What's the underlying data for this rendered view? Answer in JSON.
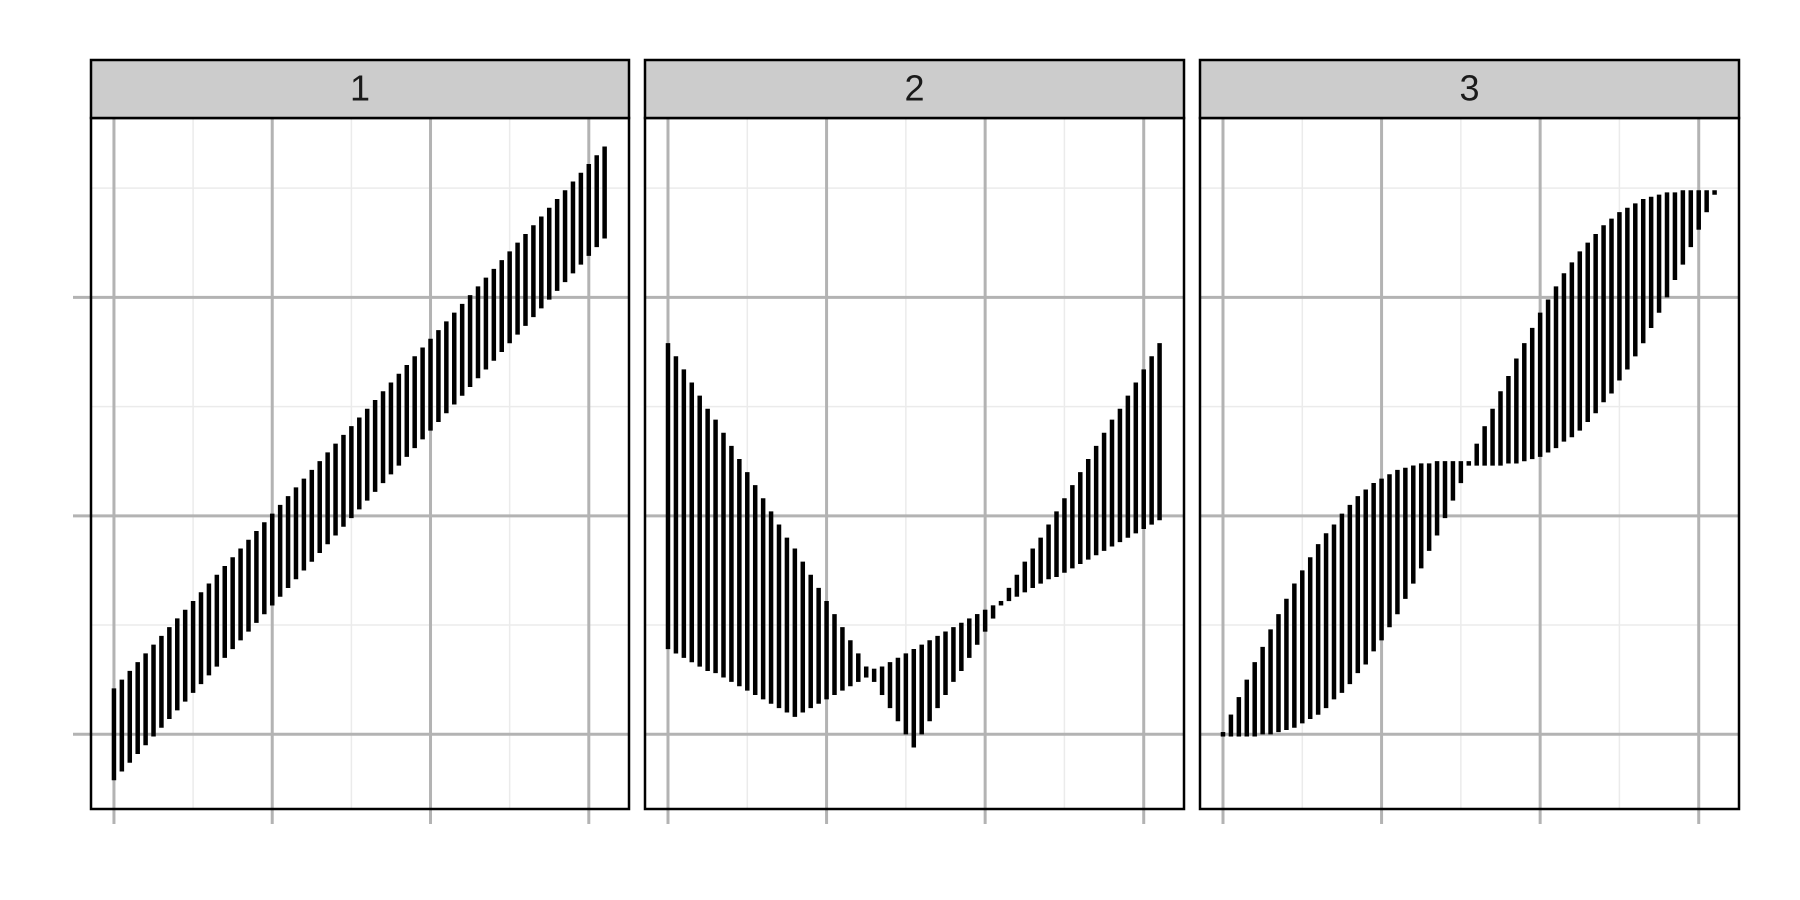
{
  "chart_data": {
    "type": "linerange",
    "color": "#000000",
    "grid": true,
    "x": [
      0,
      0.05,
      0.1,
      0.15,
      0.2,
      0.25,
      0.3,
      0.35,
      0.4,
      0.45,
      0.5,
      0.55,
      0.6,
      0.65,
      0.7,
      0.75,
      0.8,
      0.85,
      0.9,
      0.95,
      1,
      1.05,
      1.1,
      1.15,
      1.2,
      1.25,
      1.3,
      1.35,
      1.4,
      1.45,
      1.5,
      1.55,
      1.6,
      1.65,
      1.7,
      1.75,
      1.8,
      1.85,
      1.9,
      1.95,
      2,
      2.05,
      2.1,
      2.15,
      2.2,
      2.25,
      2.3,
      2.35,
      2.4,
      2.45,
      2.5,
      2.55,
      2.6,
      2.65,
      2.7,
      2.75,
      2.8,
      2.85,
      2.9,
      2.95,
      3,
      3.05,
      3.1
    ],
    "xlim": [
      -0.145,
      3.254
    ],
    "ylim": [
      -0.342,
      2.821
    ],
    "xticks": [
      0,
      1,
      2,
      3
    ],
    "xminor": [
      0.5,
      1.5,
      2.5
    ],
    "yticks": [
      0,
      1,
      2
    ],
    "yminor": [
      0.5,
      1.5,
      2.5
    ],
    "facets": [
      {
        "label": "1",
        "ymin": [
          -0.2,
          -0.16,
          -0.12,
          -0.08,
          -0.04,
          0,
          0.04,
          0.08,
          0.12,
          0.16,
          0.2,
          0.24,
          0.28,
          0.32,
          0.36,
          0.4,
          0.44,
          0.48,
          0.52,
          0.56,
          0.6,
          0.64,
          0.68,
          0.72,
          0.76,
          0.8,
          0.84,
          0.88,
          0.92,
          0.96,
          1,
          1.04,
          1.08,
          1.12,
          1.16,
          1.2,
          1.24,
          1.28,
          1.32,
          1.36,
          1.4,
          1.44,
          1.48,
          1.52,
          1.56,
          1.6,
          1.64,
          1.68,
          1.72,
          1.76,
          1.8,
          1.84,
          1.88,
          1.92,
          1.96,
          2,
          2.04,
          2.08,
          2.12,
          2.16,
          2.2,
          2.24,
          2.28
        ],
        "ymax": [
          0.2,
          0.24,
          0.28,
          0.32,
          0.36,
          0.4,
          0.44,
          0.48,
          0.52,
          0.56,
          0.6,
          0.64,
          0.68,
          0.72,
          0.76,
          0.8,
          0.84,
          0.88,
          0.92,
          0.96,
          1,
          1.04,
          1.08,
          1.12,
          1.16,
          1.2,
          1.24,
          1.28,
          1.32,
          1.36,
          1.4,
          1.44,
          1.48,
          1.52,
          1.56,
          1.6,
          1.64,
          1.68,
          1.72,
          1.76,
          1.8,
          1.84,
          1.88,
          1.92,
          1.96,
          2,
          2.04,
          2.08,
          2.12,
          2.16,
          2.2,
          2.24,
          2.28,
          2.32,
          2.36,
          2.4,
          2.44,
          2.48,
          2.52,
          2.56,
          2.6,
          2.64,
          2.68
        ]
      },
      {
        "label": "2",
        "ymin": [
          0.4,
          0.38,
          0.36,
          0.34,
          0.32,
          0.3,
          0.29,
          0.27,
          0.25,
          0.23,
          0.21,
          0.19,
          0.17,
          0.15,
          0.13,
          0.11,
          0.09,
          0.11,
          0.13,
          0.15,
          0.17,
          0.19,
          0.21,
          0.23,
          0.25,
          0.27,
          0.25,
          0.19,
          0.13,
          0.07,
          0.01,
          -0.05,
          0.01,
          0.07,
          0.13,
          0.19,
          0.25,
          0.3,
          0.36,
          0.42,
          0.48,
          0.54,
          0.6,
          0.62,
          0.64,
          0.66,
          0.68,
          0.7,
          0.72,
          0.73,
          0.75,
          0.77,
          0.79,
          0.81,
          0.83,
          0.85,
          0.87,
          0.89,
          0.91,
          0.93,
          0.95,
          0.97,
          0.99
        ],
        "ymax": [
          1.78,
          1.72,
          1.66,
          1.6,
          1.54,
          1.48,
          1.43,
          1.37,
          1.31,
          1.25,
          1.19,
          1.13,
          1.07,
          1.01,
          0.95,
          0.89,
          0.84,
          0.78,
          0.72,
          0.66,
          0.6,
          0.54,
          0.48,
          0.42,
          0.36,
          0.3,
          0.29,
          0.3,
          0.32,
          0.34,
          0.36,
          0.38,
          0.4,
          0.42,
          0.44,
          0.46,
          0.48,
          0.5,
          0.52,
          0.54,
          0.56,
          0.58,
          0.6,
          0.66,
          0.72,
          0.78,
          0.84,
          0.89,
          0.95,
          1.01,
          1.07,
          1.13,
          1.19,
          1.25,
          1.31,
          1.37,
          1.43,
          1.48,
          1.54,
          1.6,
          1.66,
          1.72,
          1.78
        ]
      },
      {
        "label": "3",
        "ymin": [
          0,
          0,
          0,
          0,
          0,
          0.01,
          0.01,
          0.02,
          0.03,
          0.04,
          0.06,
          0.08,
          0.1,
          0.13,
          0.17,
          0.2,
          0.24,
          0.29,
          0.33,
          0.39,
          0.44,
          0.5,
          0.56,
          0.63,
          0.7,
          0.77,
          0.85,
          0.92,
          1,
          1.08,
          1.16,
          1.24,
          1.24,
          1.24,
          1.24,
          1.24,
          1.25,
          1.25,
          1.26,
          1.27,
          1.28,
          1.3,
          1.32,
          1.35,
          1.37,
          1.4,
          1.44,
          1.48,
          1.53,
          1.57,
          1.63,
          1.68,
          1.74,
          1.8,
          1.87,
          1.94,
          2.01,
          2.09,
          2.16,
          2.24,
          2.32,
          2.4,
          2.48
        ],
        "ymax": [
          0,
          0.08,
          0.16,
          0.24,
          0.32,
          0.39,
          0.47,
          0.54,
          0.61,
          0.68,
          0.74,
          0.8,
          0.86,
          0.91,
          0.95,
          1,
          1.04,
          1.08,
          1.11,
          1.14,
          1.16,
          1.18,
          1.2,
          1.21,
          1.22,
          1.23,
          1.23,
          1.24,
          1.24,
          1.24,
          1.24,
          1.24,
          1.32,
          1.4,
          1.48,
          1.56,
          1.63,
          1.71,
          1.78,
          1.85,
          1.92,
          1.98,
          2.04,
          2.1,
          2.15,
          2.2,
          2.24,
          2.28,
          2.32,
          2.35,
          2.38,
          2.4,
          2.42,
          2.44,
          2.45,
          2.46,
          2.47,
          2.47,
          2.48,
          2.48,
          2.48,
          2.48,
          2.48
        ]
      }
    ]
  }
}
